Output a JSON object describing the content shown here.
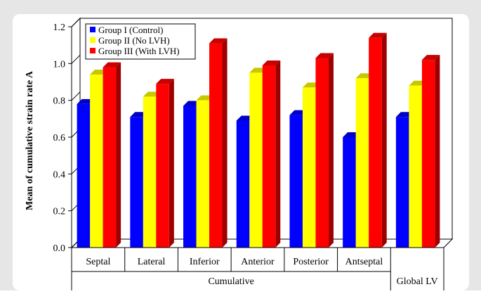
{
  "colors": {
    "outer_bg": "#e6e6e6",
    "inner_bg": "#ffffff",
    "series": [
      "#0000ff",
      "#ffff00",
      "#ff0000"
    ]
  },
  "chart_data": {
    "type": "bar",
    "categories": [
      "Septal",
      "Lateral",
      "Inferior",
      "Anterior",
      "Posterior",
      "Antseptal",
      "Global LV"
    ],
    "groups": [
      {
        "label": "Cumulative",
        "categories": [
          "Septal",
          "Lateral",
          "Inferior",
          "Anterior",
          "Posterior",
          "Antseptal"
        ]
      },
      {
        "label": "Global LV",
        "categories": [
          "Global LV"
        ]
      }
    ],
    "series": [
      {
        "name": "Group I (Control)",
        "values": [
          0.78,
          0.71,
          0.77,
          0.69,
          0.72,
          0.6,
          0.71
        ]
      },
      {
        "name": "Group II (No LVH)",
        "values": [
          0.94,
          0.82,
          0.8,
          0.95,
          0.87,
          0.92,
          0.88
        ]
      },
      {
        "name": "Group III (With LVH)",
        "values": [
          0.98,
          0.89,
          1.11,
          0.99,
          1.03,
          1.14,
          1.02
        ]
      }
    ],
    "ylabel": "Mean of cumulative strain rate A",
    "xlabel": "",
    "ylim": [
      0,
      1.2
    ],
    "yticks": [
      "0.0",
      "0.2",
      "0.4",
      "0.6",
      "0.8",
      "1.0",
      "1.2"
    ],
    "legend_position": "top-left",
    "grid": false
  }
}
